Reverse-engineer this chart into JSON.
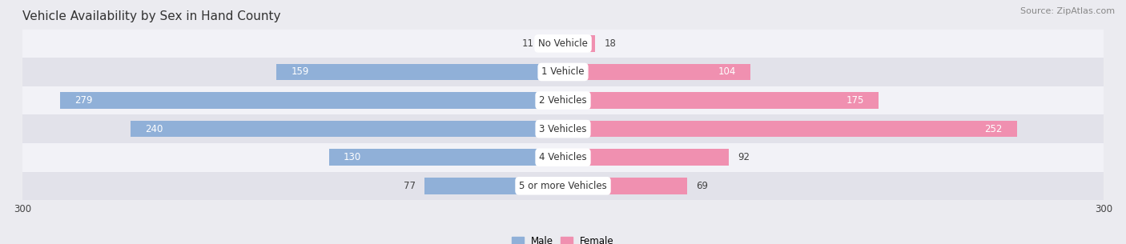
{
  "title": "Vehicle Availability by Sex in Hand County",
  "source": "Source: ZipAtlas.com",
  "categories": [
    "No Vehicle",
    "1 Vehicle",
    "2 Vehicles",
    "3 Vehicles",
    "4 Vehicles",
    "5 or more Vehicles"
  ],
  "male_values": [
    11,
    159,
    279,
    240,
    130,
    77
  ],
  "female_values": [
    18,
    104,
    175,
    252,
    92,
    69
  ],
  "male_color": "#90b0d8",
  "female_color": "#f090b0",
  "male_label": "Male",
  "female_label": "Female",
  "xlim": [
    -300,
    300
  ],
  "bar_height": 0.58,
  "bg_color": "#ebebf0",
  "row_bg_light": "#f2f2f7",
  "row_bg_dark": "#e2e2ea",
  "label_fontsize": 8.5,
  "title_fontsize": 11,
  "source_fontsize": 8,
  "axis_label_fontsize": 8.5
}
